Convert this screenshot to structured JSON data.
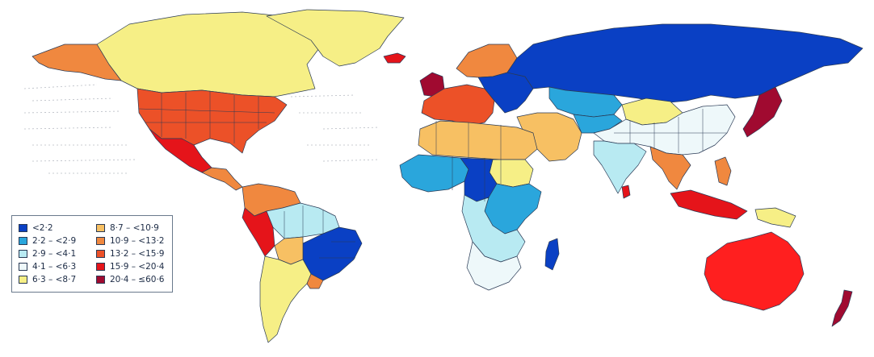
{
  "legend": {
    "items": [
      {
        "label": "<2·2",
        "color": "#0a40c4"
      },
      {
        "label": "2·2 – <2·9",
        "color": "#2aa6dc"
      },
      {
        "label": "2·9 – <4·1",
        "color": "#b8eaf2"
      },
      {
        "label": "4·1 – <6·3",
        "color": "#eef8fa"
      },
      {
        "label": "6·3 – <8·7",
        "color": "#f6ef86"
      },
      {
        "label": "8·7 – <10·9",
        "color": "#f7c063"
      },
      {
        "label": "10·9 – <13·2",
        "color": "#f0883f"
      },
      {
        "label": "13·2 – <15·9",
        "color": "#ec5128"
      },
      {
        "label": "15·9 – <20·4",
        "color": "#e5141a"
      },
      {
        "label": "20·4 – ≤60·6",
        "color": "#a00a30"
      }
    ]
  },
  "regions": [
    {
      "name": "canada-arctic",
      "color": "#f6ef86"
    },
    {
      "name": "greenland",
      "color": "#f6ef86"
    },
    {
      "name": "alaska",
      "color": "#f0883f"
    },
    {
      "name": "usa",
      "color": "#ec5128"
    },
    {
      "name": "mexico",
      "color": "#e5141a"
    },
    {
      "name": "central-america",
      "color": "#f0883f"
    },
    {
      "name": "colombia-venezuela",
      "color": "#f0883f"
    },
    {
      "name": "peru",
      "color": "#e5141a"
    },
    {
      "name": "brazil-north",
      "color": "#b8eaf2"
    },
    {
      "name": "brazil-east",
      "color": "#0a40c4"
    },
    {
      "name": "bolivia",
      "color": "#f7c063"
    },
    {
      "name": "chile-argentina",
      "color": "#f6ef86"
    },
    {
      "name": "uruguay",
      "color": "#f0883f"
    },
    {
      "name": "scandinavia",
      "color": "#f0883f"
    },
    {
      "name": "western-europe",
      "color": "#ec5128"
    },
    {
      "name": "uk",
      "color": "#a00a30"
    },
    {
      "name": "eastern-europe",
      "color": "#0a40c4"
    },
    {
      "name": "russia",
      "color": "#0a40c4"
    },
    {
      "name": "north-africa",
      "color": "#f7c063"
    },
    {
      "name": "west-africa",
      "color": "#2aa6dc"
    },
    {
      "name": "central-africa",
      "color": "#0a40c4"
    },
    {
      "name": "east-africa",
      "color": "#2aa6dc"
    },
    {
      "name": "sudan",
      "color": "#f6ef86"
    },
    {
      "name": "southern-africa",
      "color": "#b8eaf2"
    },
    {
      "name": "south-africa",
      "color": "#eef8fa"
    },
    {
      "name": "madagascar",
      "color": "#0a40c4"
    },
    {
      "name": "middle-east",
      "color": "#f7c063"
    },
    {
      "name": "kazakhstan",
      "color": "#2aa6dc"
    },
    {
      "name": "central-asia",
      "color": "#2aa6dc"
    },
    {
      "name": "mongolia",
      "color": "#f6ef86"
    },
    {
      "name": "china",
      "color": "#eef8fa"
    },
    {
      "name": "india",
      "color": "#b8eaf2"
    },
    {
      "name": "southeast-asia",
      "color": "#f0883f"
    },
    {
      "name": "japan-korea",
      "color": "#a00a30"
    },
    {
      "name": "indonesia",
      "color": "#e5141a"
    },
    {
      "name": "philippines",
      "color": "#f0883f"
    },
    {
      "name": "papua",
      "color": "#f6ef86"
    },
    {
      "name": "australia",
      "color": "#ff1f1f"
    },
    {
      "name": "new-zealand",
      "color": "#a00a30"
    },
    {
      "name": "sri-lanka",
      "color": "#e5141a"
    },
    {
      "name": "iceland",
      "color": "#e5141a"
    }
  ]
}
